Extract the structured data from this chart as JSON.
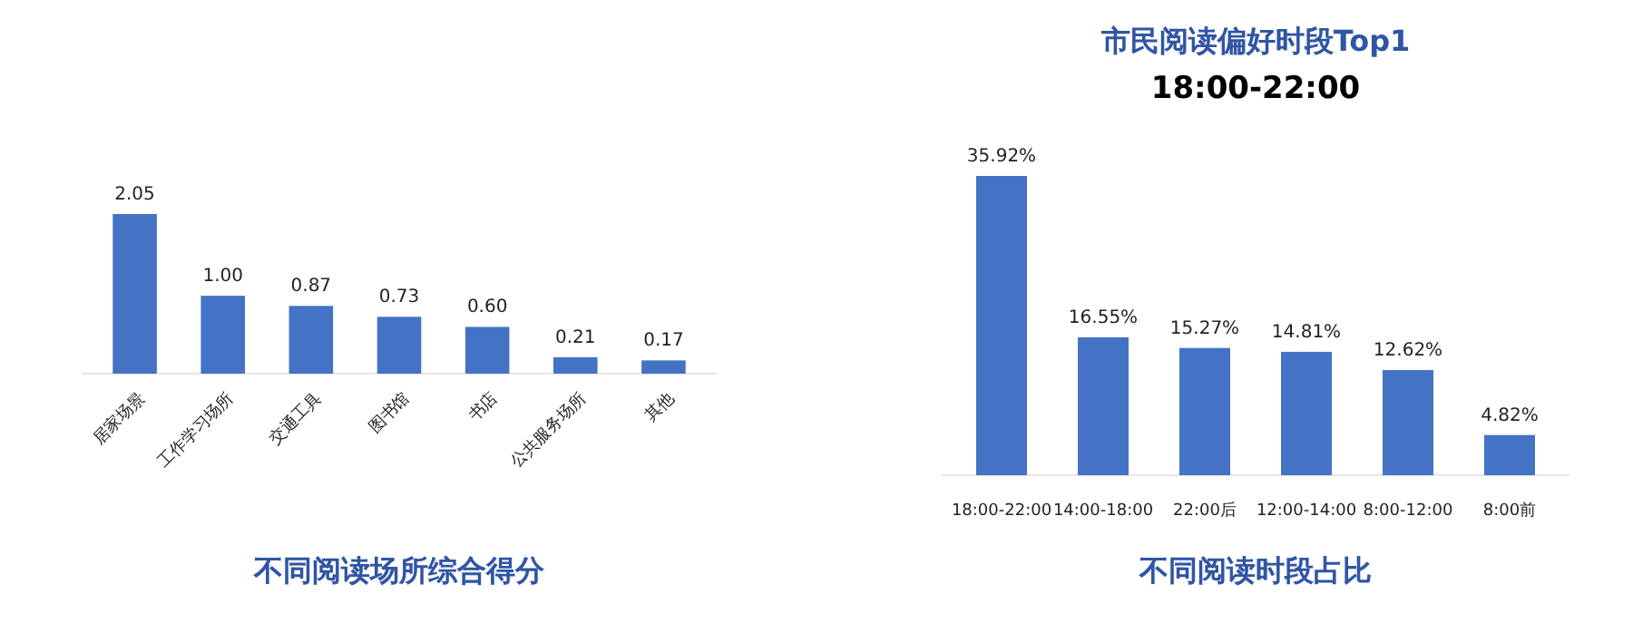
{
  "chart_data": [
    {
      "type": "bar",
      "title": "不同阅读场所综合得分",
      "categories": [
        "居家场景",
        "工作学习场所",
        "交通工具",
        "图书馆",
        "书店",
        "公共服务场所",
        "其他"
      ],
      "values": [
        2.05,
        1.0,
        0.87,
        0.73,
        0.6,
        0.21,
        0.17
      ],
      "value_labels": [
        "2.05",
        "1.00",
        "0.87",
        "0.73",
        "0.60",
        "0.21",
        "0.17"
      ],
      "color": "#4472c4"
    },
    {
      "type": "bar",
      "title": "不同阅读时段占比",
      "annotations": [
        "市民阅读偏好时段Top1",
        "18:00-22:00"
      ],
      "categories": [
        "18:00-22:00",
        "14:00-18:00",
        "22:00后",
        "12:00-14:00",
        "8:00-12:00",
        "8:00前"
      ],
      "values": [
        35.92,
        16.55,
        15.27,
        14.81,
        12.62,
        4.82
      ],
      "value_labels": [
        "35.92%",
        "16.55%",
        "15.27%",
        "14.81%",
        "12.62%",
        "4.82%"
      ],
      "color": "#4472c4"
    }
  ]
}
